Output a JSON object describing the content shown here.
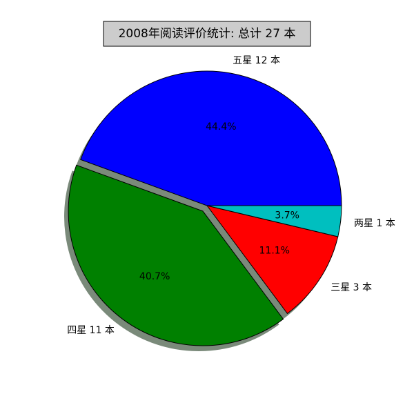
{
  "chart_data": {
    "type": "pie",
    "title": "2008年阅读评价统计: 总计 27 本",
    "slices": [
      {
        "label": "五星 12 本",
        "value": 12,
        "percent_label": "44.4%",
        "color": "#0000ff",
        "exploded": false
      },
      {
        "label": "四星 11 本",
        "value": 11,
        "percent_label": "40.7%",
        "color": "#008000",
        "exploded": true
      },
      {
        "label": "三星 3 本",
        "value": 3,
        "percent_label": "11.1%",
        "color": "#ff0000",
        "exploded": false
      },
      {
        "label": "两星 1 本",
        "value": 1,
        "percent_label": "3.7%",
        "color": "#00bfbf",
        "exploded": false
      }
    ],
    "shadow": true,
    "shadow_color": "#7a8a7a",
    "title_background": "#cccccc"
  }
}
